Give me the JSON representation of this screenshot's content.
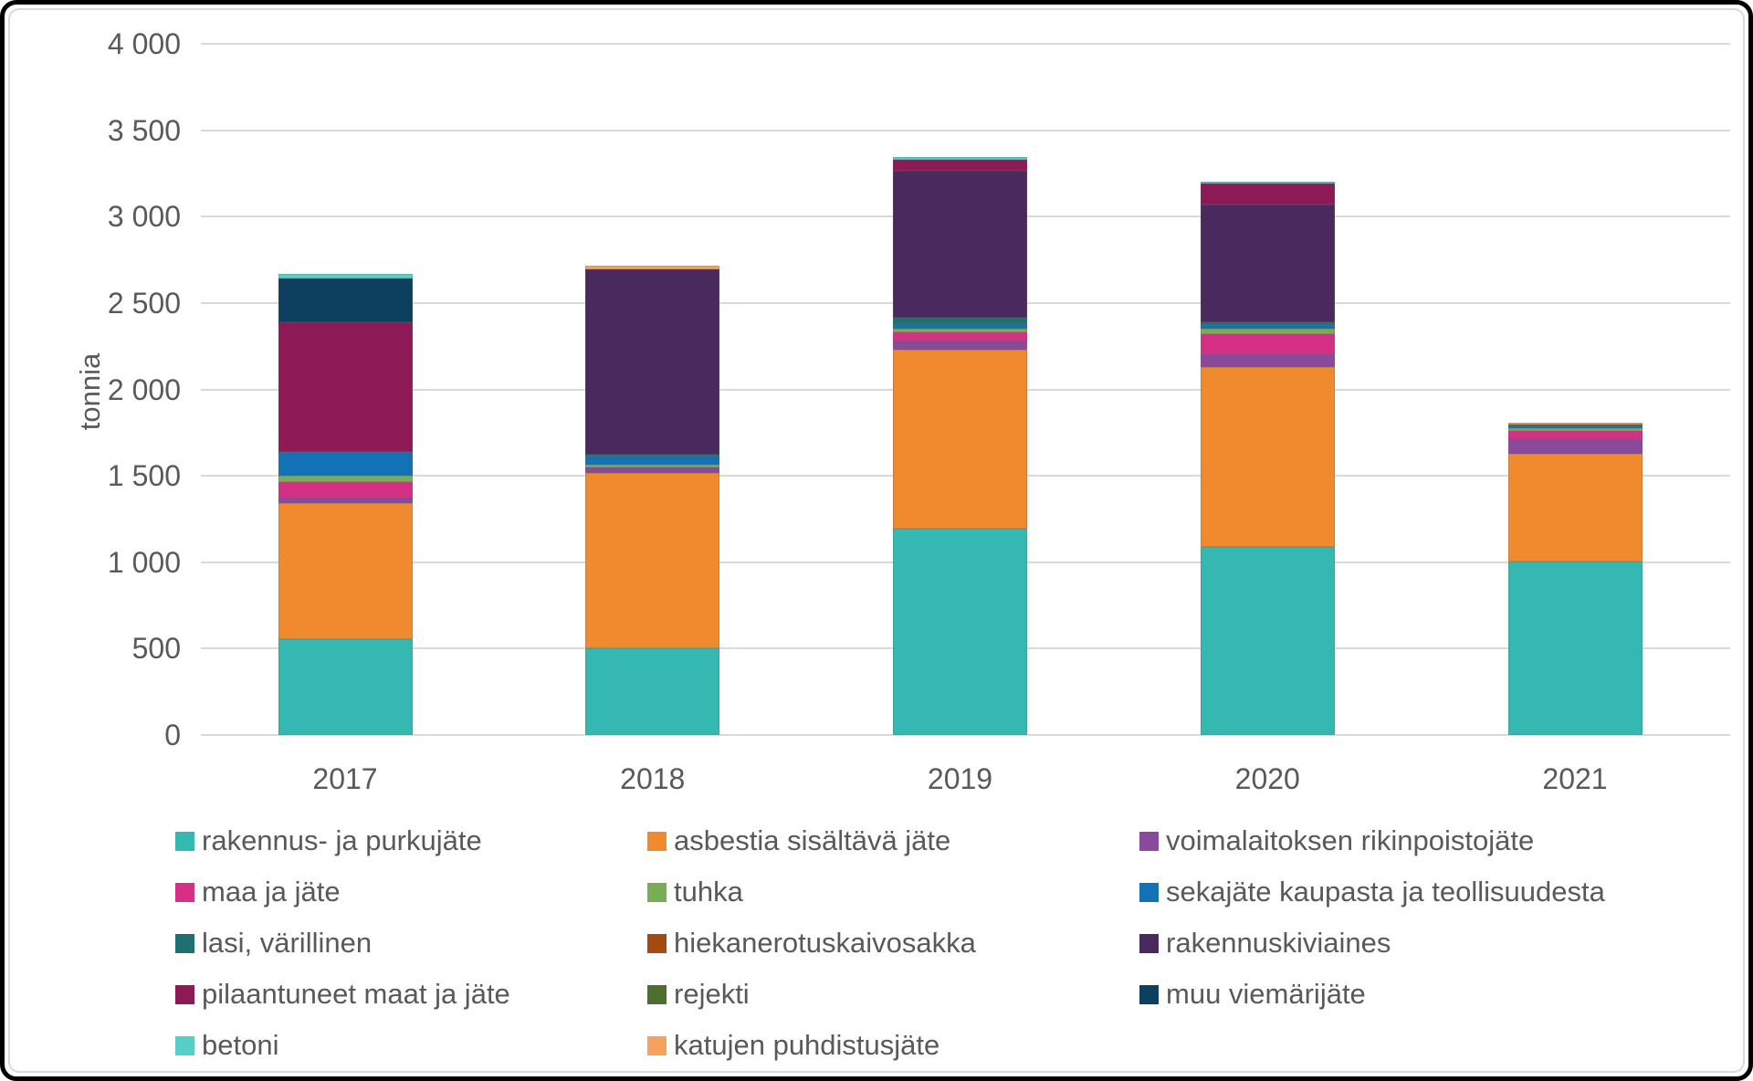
{
  "chart": {
    "y_axis_title": "tonnia"
  },
  "chart_data": {
    "type": "bar",
    "stacked": true,
    "title": "",
    "xlabel": "",
    "ylabel": "tonnia",
    "ylim": [
      0,
      4000
    ],
    "ytick_step": 500,
    "grid": true,
    "gridline_color": "#d9d9d9",
    "text_color": "#595959",
    "legend_position": "bottom",
    "yticks": [
      {
        "value": 4000,
        "label": "4 000"
      },
      {
        "value": 3500,
        "label": "3 500"
      },
      {
        "value": 3000,
        "label": "3 000"
      },
      {
        "value": 2500,
        "label": "2 500"
      },
      {
        "value": 2000,
        "label": "2 000"
      },
      {
        "value": 1500,
        "label": "1 500"
      },
      {
        "value": 1000,
        "label": "1 000"
      },
      {
        "value": 500,
        "label": "500"
      },
      {
        "value": 0,
        "label": "0"
      }
    ],
    "categories": [
      "2017",
      "2018",
      "2019",
      "2020",
      "2021"
    ],
    "series": [
      {
        "name": "rakennus- ja purkujäte",
        "color": "#35b8b2",
        "values": [
          555,
          500,
          1195,
          1090,
          1005
        ]
      },
      {
        "name": "asbestia sisältävä jäte",
        "color": "#ef8a2f",
        "values": [
          785,
          1015,
          1035,
          1040,
          620
        ]
      },
      {
        "name": "voimalaitoksen rikinpoistojäte",
        "color": "#8a4a9c",
        "values": [
          35,
          35,
          55,
          75,
          85
        ]
      },
      {
        "name": "maa ja jäte",
        "color": "#d63086",
        "values": [
          90,
          0,
          45,
          115,
          50
        ]
      },
      {
        "name": "tuhka",
        "color": "#7aad53",
        "values": [
          35,
          15,
          20,
          30,
          15
        ]
      },
      {
        "name": "sekajäte kaupasta ja teollisuudesta",
        "color": "#1272b4",
        "values": [
          140,
          45,
          30,
          25,
          12
        ]
      },
      {
        "name": "lasi, värillinen",
        "color": "#20706f",
        "values": [
          0,
          10,
          35,
          15,
          10
        ]
      },
      {
        "name": "hiekanerotuskaivosakka",
        "color": "#a34a10",
        "values": [
          0,
          0,
          0,
          0,
          0
        ]
      },
      {
        "name": "rakennuskiviaines",
        "color": "#4a2a5e",
        "values": [
          0,
          1075,
          850,
          680,
          0
        ]
      },
      {
        "name": "pilaantuneet maat ja jäte",
        "color": "#8e1a55",
        "values": [
          750,
          0,
          65,
          120,
          0
        ]
      },
      {
        "name": "rejekti",
        "color": "#4d6e2f",
        "values": [
          0,
          0,
          0,
          0,
          0
        ]
      },
      {
        "name": "muu viemärijäte",
        "color": "#0d3f5f",
        "values": [
          250,
          0,
          0,
          0,
          0
        ]
      },
      {
        "name": "betoni",
        "color": "#57cfc9",
        "values": [
          30,
          0,
          15,
          10,
          0
        ]
      },
      {
        "name": "katujen puhdistusjäte",
        "color": "#f4a25c",
        "values": [
          0,
          20,
          0,
          0,
          8
        ]
      }
    ]
  }
}
